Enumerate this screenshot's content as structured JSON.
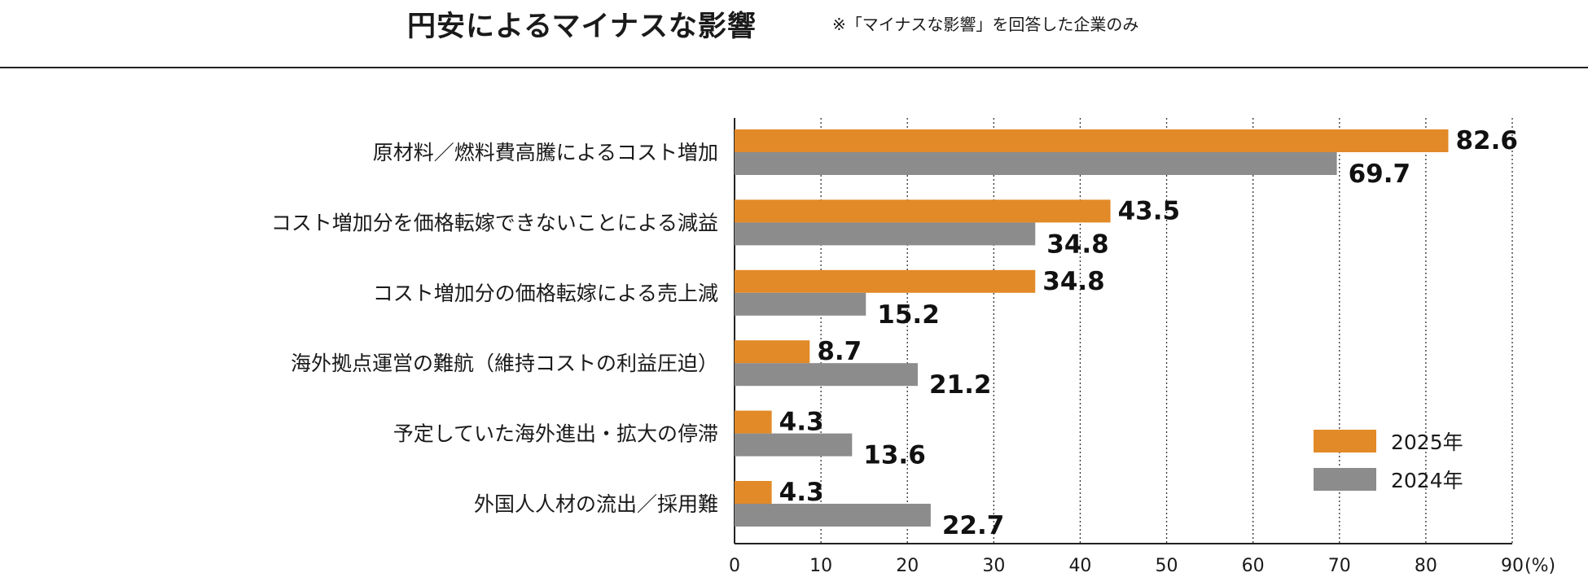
{
  "chart_data": {
    "type": "bar",
    "orientation": "horizontal",
    "title": "円安によるマイナスな影響",
    "subtitle": "※「マイナスな影響」を回答した企業のみ",
    "categories": [
      "原材料／燃料費高騰によるコスト増加",
      "コスト増加分を価格転嫁できないことによる減益",
      "コスト増加分の価格転嫁による売上減",
      "海外拠点運営の難航（維持コストの利益圧迫）",
      "予定していた海外進出・拡大の停滞",
      "外国人人材の流出／採用難"
    ],
    "series": [
      {
        "name": "2025年",
        "color": "#e28a27",
        "values": [
          82.6,
          43.5,
          34.8,
          8.7,
          4.3,
          4.3
        ],
        "labels": [
          "82.6",
          "43.5",
          "34.8",
          "8.7",
          "4.3",
          "4.3"
        ]
      },
      {
        "name": "2024年",
        "color": "#8c8c8c",
        "values": [
          69.7,
          34.8,
          15.2,
          21.2,
          13.6,
          22.7
        ],
        "labels": [
          "69.7",
          "34.8",
          "15.2",
          "21.2",
          "13.6",
          "22.7"
        ]
      }
    ],
    "xlim": [
      0,
      90
    ],
    "xticks": [
      "0",
      "10",
      "20",
      "30",
      "40",
      "50",
      "60",
      "70",
      "80",
      "90"
    ],
    "xunit": "(%)",
    "grid": "vertical-dotted",
    "legend": "bottom-right"
  }
}
